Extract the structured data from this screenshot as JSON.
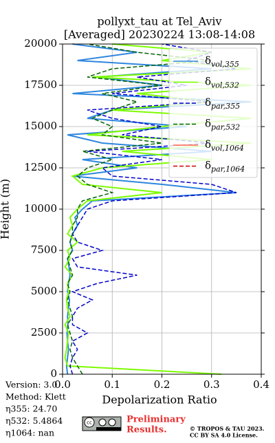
{
  "chart_data": {
    "type": "line",
    "title": "pollyxt_tau at Tel_Aviv",
    "subtitle": "[Averaged] 20230224 13:08-14:08",
    "x_label": "Depolarization Ratio",
    "y_label": "Height (m)",
    "xlim": [
      0,
      0.4
    ],
    "xticks": [
      {
        "value": 0,
        "label": "0.0"
      },
      0.1,
      0.2,
      0.3,
      0.4
    ],
    "ylim": [
      0,
      20000
    ],
    "yticks": [
      0,
      2500,
      5000,
      7500,
      10000,
      12500,
      15000,
      17500,
      20000
    ],
    "grid": true,
    "legend": "upper right",
    "y": [
      0,
      500,
      1000,
      1500,
      2000,
      2500,
      3000,
      3500,
      4000,
      4500,
      5000,
      5500,
      6000,
      6500,
      7000,
      7500,
      8000,
      8500,
      9000,
      9500,
      10000,
      10500,
      11000,
      11500,
      12000,
      12500,
      13000,
      13500,
      14000,
      14500,
      15000,
      15500,
      16000,
      16500,
      17000,
      17500,
      18000,
      18500,
      19000,
      19500,
      20000
    ],
    "series": [
      {
        "name": "δvol,355",
        "color": "#2e86de",
        "linestyle": "solid",
        "values": [
          0.01,
          0.008,
          0.01,
          0.012,
          0.01,
          0.009,
          0.011,
          0.01,
          0.012,
          0.014,
          0.01,
          0.012,
          0.015,
          0.013,
          0.01,
          0.02,
          0.015,
          0.02,
          0.03,
          0.025,
          0.04,
          0.06,
          0.35,
          0.2,
          0.02,
          0.15,
          0.04,
          0.3,
          0.08,
          0.01,
          0.25,
          0.05,
          0.1,
          0.38,
          0.02,
          0.2,
          0.07,
          0.3,
          0.03,
          0.15,
          0.02
        ]
      },
      {
        "name": "δvol,532",
        "color": "#7cfc00",
        "linestyle": "solid",
        "values": [
          0.32,
          0.01,
          0.005,
          0.008,
          0.01,
          0.012,
          0.005,
          0.015,
          0.01,
          0.008,
          0.012,
          0.01,
          0.02,
          0.005,
          0.015,
          0.01,
          0.03,
          0.01,
          0.02,
          0.015,
          0.03,
          0.05,
          0.2,
          0.04,
          0.02,
          0.08,
          0.3,
          0.12,
          0.38,
          0.05,
          0.2,
          0.38,
          0.1,
          0.3,
          0.15,
          0.38,
          0.06,
          0.38,
          0.2,
          0.3,
          0.1
        ]
      },
      {
        "name": "δpar,355",
        "color": "#0000cd",
        "linestyle": "dashed",
        "values": [
          0.02,
          0.015,
          0.02,
          0.03,
          0.02,
          0.05,
          0.02,
          0.02,
          0.03,
          0.06,
          0.02,
          0.07,
          0.15,
          0.03,
          0.02,
          0.08,
          0.03,
          0.02,
          0.03,
          0.04,
          0.05,
          0.1,
          0.35,
          0.3,
          0.1,
          0.08,
          0.2,
          0.05,
          0.3,
          0.12,
          0.2,
          0.1,
          0.05,
          0.3,
          0.1,
          0.25,
          0.15,
          0.35,
          0.25,
          0.3,
          0.2
        ]
      },
      {
        "name": "δpar,532",
        "color": "#006400",
        "linestyle": "dashed",
        "values": [
          0.04,
          0.03,
          0.02,
          0.015,
          0.02,
          0.015,
          0.01,
          0.02,
          0.015,
          0.01,
          0.015,
          0.01,
          0.02,
          0.015,
          0.01,
          0.02,
          0.015,
          0.02,
          0.02,
          0.03,
          0.03,
          0.04,
          0.1,
          0.05,
          0.03,
          0.05,
          0.1,
          0.04,
          0.2,
          0.08,
          0.1,
          0.06,
          0.1,
          0.15,
          0.08,
          0.2,
          0.05,
          0.1,
          0.3,
          0.15,
          0.05
        ]
      },
      {
        "name": "δvol,1064",
        "color": "#ff6347",
        "linestyle": "solid",
        "values": [
          null,
          null,
          null,
          null,
          null,
          null,
          null,
          null,
          null,
          null,
          null,
          null,
          null,
          null,
          null,
          null,
          null,
          null,
          null,
          null,
          null,
          null,
          null,
          null,
          null,
          null,
          null,
          null,
          null,
          null,
          null,
          null,
          null,
          null,
          null,
          null,
          null,
          null,
          null,
          null,
          null
        ]
      },
      {
        "name": "δpar,1064",
        "color": "#cc0000",
        "linestyle": "dashed",
        "values": [
          null,
          null,
          null,
          null,
          null,
          null,
          null,
          null,
          null,
          null,
          null,
          null,
          null,
          null,
          null,
          null,
          null,
          null,
          null,
          null,
          null,
          null,
          null,
          null,
          null,
          null,
          null,
          null,
          null,
          null,
          null,
          null,
          null,
          null,
          null,
          null,
          null,
          null,
          null,
          null,
          null
        ]
      }
    ],
    "info": [
      "Version: 3.0",
      "Method: Klett",
      "η355:  24.70",
      "η532: 5.4864",
      "η1064:    nan"
    ],
    "notice": [
      "Preliminary",
      "Results."
    ],
    "copyright": [
      "© TROPOS & TAU 2023.",
      "CC BY SA 4.0 License."
    ]
  }
}
